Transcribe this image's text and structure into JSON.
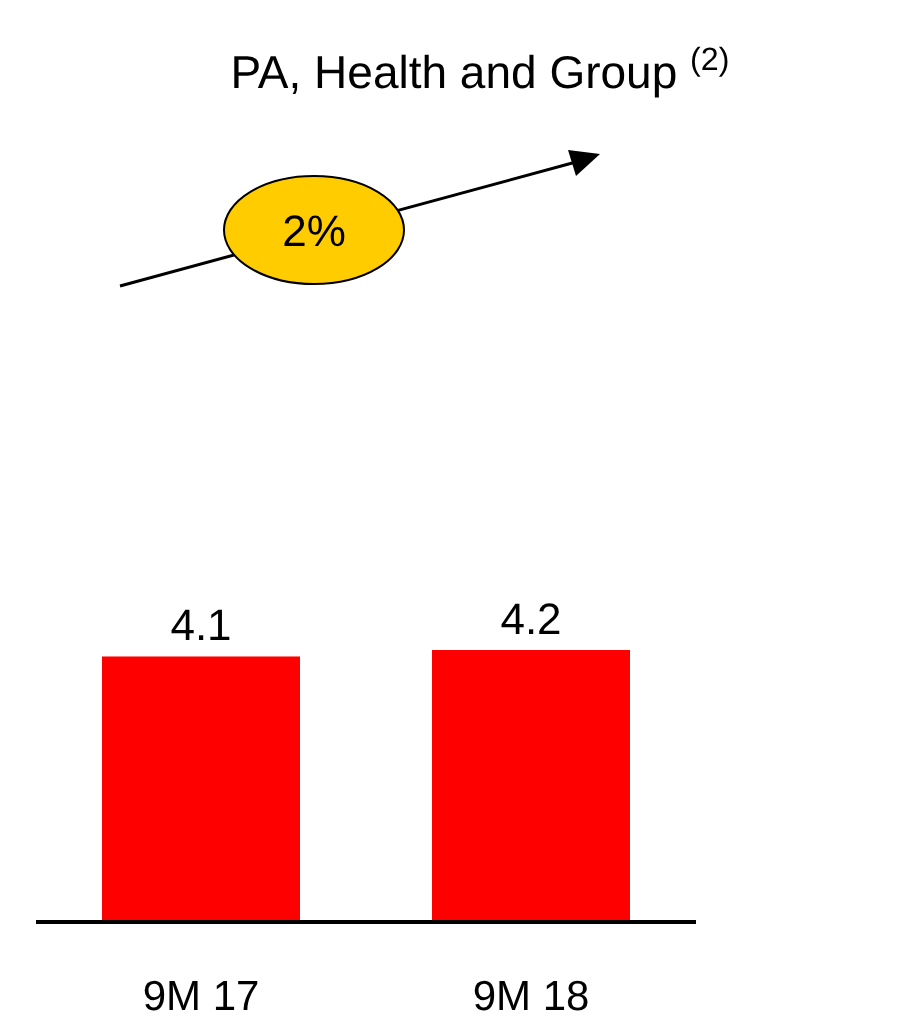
{
  "chart_data": {
    "type": "bar",
    "title": "PA, Health and Group $^{(2)}$",
    "categories": [
      "9M 17",
      "9M 18"
    ],
    "values": [
      4.1,
      4.2
    ],
    "color": "#ff0000",
    "data_labels": true,
    "annotations": [
      "2%"
    ]
  }
}
